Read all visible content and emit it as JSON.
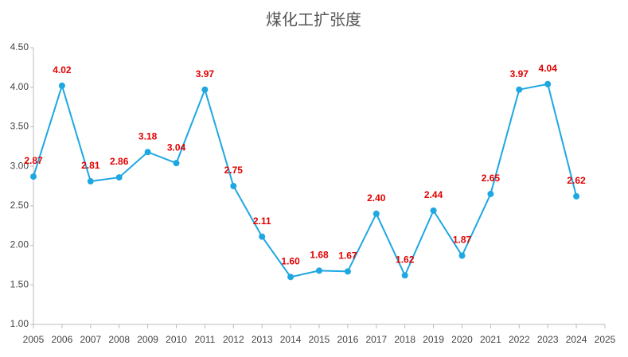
{
  "chart_data": {
    "type": "line",
    "title": "煤化工扩张度",
    "categories": [
      "2005",
      "2006",
      "2007",
      "2008",
      "2009",
      "2010",
      "2011",
      "2012",
      "2013",
      "2014",
      "2015",
      "2016",
      "2017",
      "2018",
      "2019",
      "2020",
      "2021",
      "2022",
      "2023",
      "2024",
      "2025"
    ],
    "series": [
      {
        "color": "#1ea7e1",
        "values": [
          2.87,
          4.02,
          2.81,
          2.86,
          3.18,
          3.04,
          3.97,
          2.75,
          2.11,
          1.6,
          1.68,
          1.67,
          2.4,
          1.62,
          2.44,
          1.87,
          2.65,
          3.97,
          4.04,
          2.62,
          null
        ],
        "value_labels": [
          "2.87",
          "4.02",
          "2.81",
          "2.86",
          "3.18",
          "3.04",
          "3.97",
          "2.75",
          "2.11",
          "1.60",
          "1.68",
          "1.67",
          "2.40",
          "1.62",
          "2.44",
          "1.87",
          "2.65",
          "3.97",
          "4.04",
          "2.62",
          null
        ]
      }
    ],
    "label_color": "#e00000",
    "ylim": [
      1,
      4.5
    ],
    "yticks": [
      {
        "value": 1,
        "label": "1.00"
      },
      {
        "value": 1.5,
        "label": "1.50"
      },
      {
        "value": 2,
        "label": "2.00"
      },
      {
        "value": 2.5,
        "label": "2.50"
      },
      {
        "value": 3,
        "label": "3.00"
      },
      {
        "value": 3.5,
        "label": "3.50"
      },
      {
        "value": 4,
        "label": "4.00"
      },
      {
        "value": 4.5,
        "label": "4.50"
      }
    ],
    "grid": false
  }
}
